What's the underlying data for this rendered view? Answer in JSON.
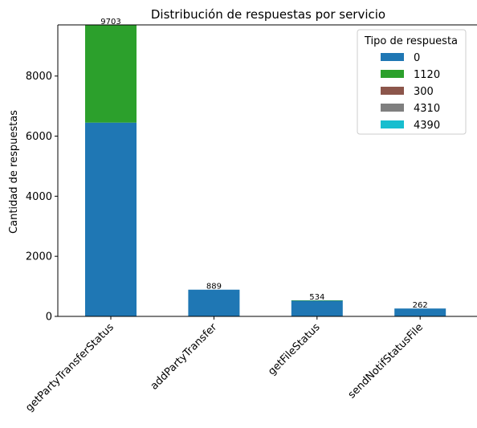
{
  "chart_data": {
    "type": "bar",
    "stacked": true,
    "title": "Distribución de respuestas por servicio",
    "xlabel": "",
    "ylabel": "Cantidad de respuestas",
    "categories": [
      "getPartyTransferStatus",
      "addPartyTransfer",
      "getFileStatus",
      "sendNotifStatusFile"
    ],
    "ylim": [
      0,
      9703
    ],
    "yticks": [
      0,
      2000,
      4000,
      6000,
      8000
    ],
    "grid": false,
    "legend": {
      "title": "Tipo de respuesta",
      "position": "top-right"
    },
    "series": [
      {
        "name": "0",
        "color": "#1f77b4",
        "values": [
          6450,
          889,
          524,
          262
        ]
      },
      {
        "name": "1120",
        "color": "#2ca02c",
        "values": [
          3253,
          0,
          10,
          0
        ]
      },
      {
        "name": "300",
        "color": "#8c564b",
        "values": [
          0,
          0,
          0,
          0
        ]
      },
      {
        "name": "4310",
        "color": "#7f7f7f",
        "values": [
          0,
          0,
          0,
          0
        ]
      },
      {
        "name": "4390",
        "color": "#17becf",
        "values": [
          0,
          0,
          0,
          0
        ]
      }
    ],
    "totals": [
      "9703",
      "889",
      "534",
      "262"
    ]
  }
}
